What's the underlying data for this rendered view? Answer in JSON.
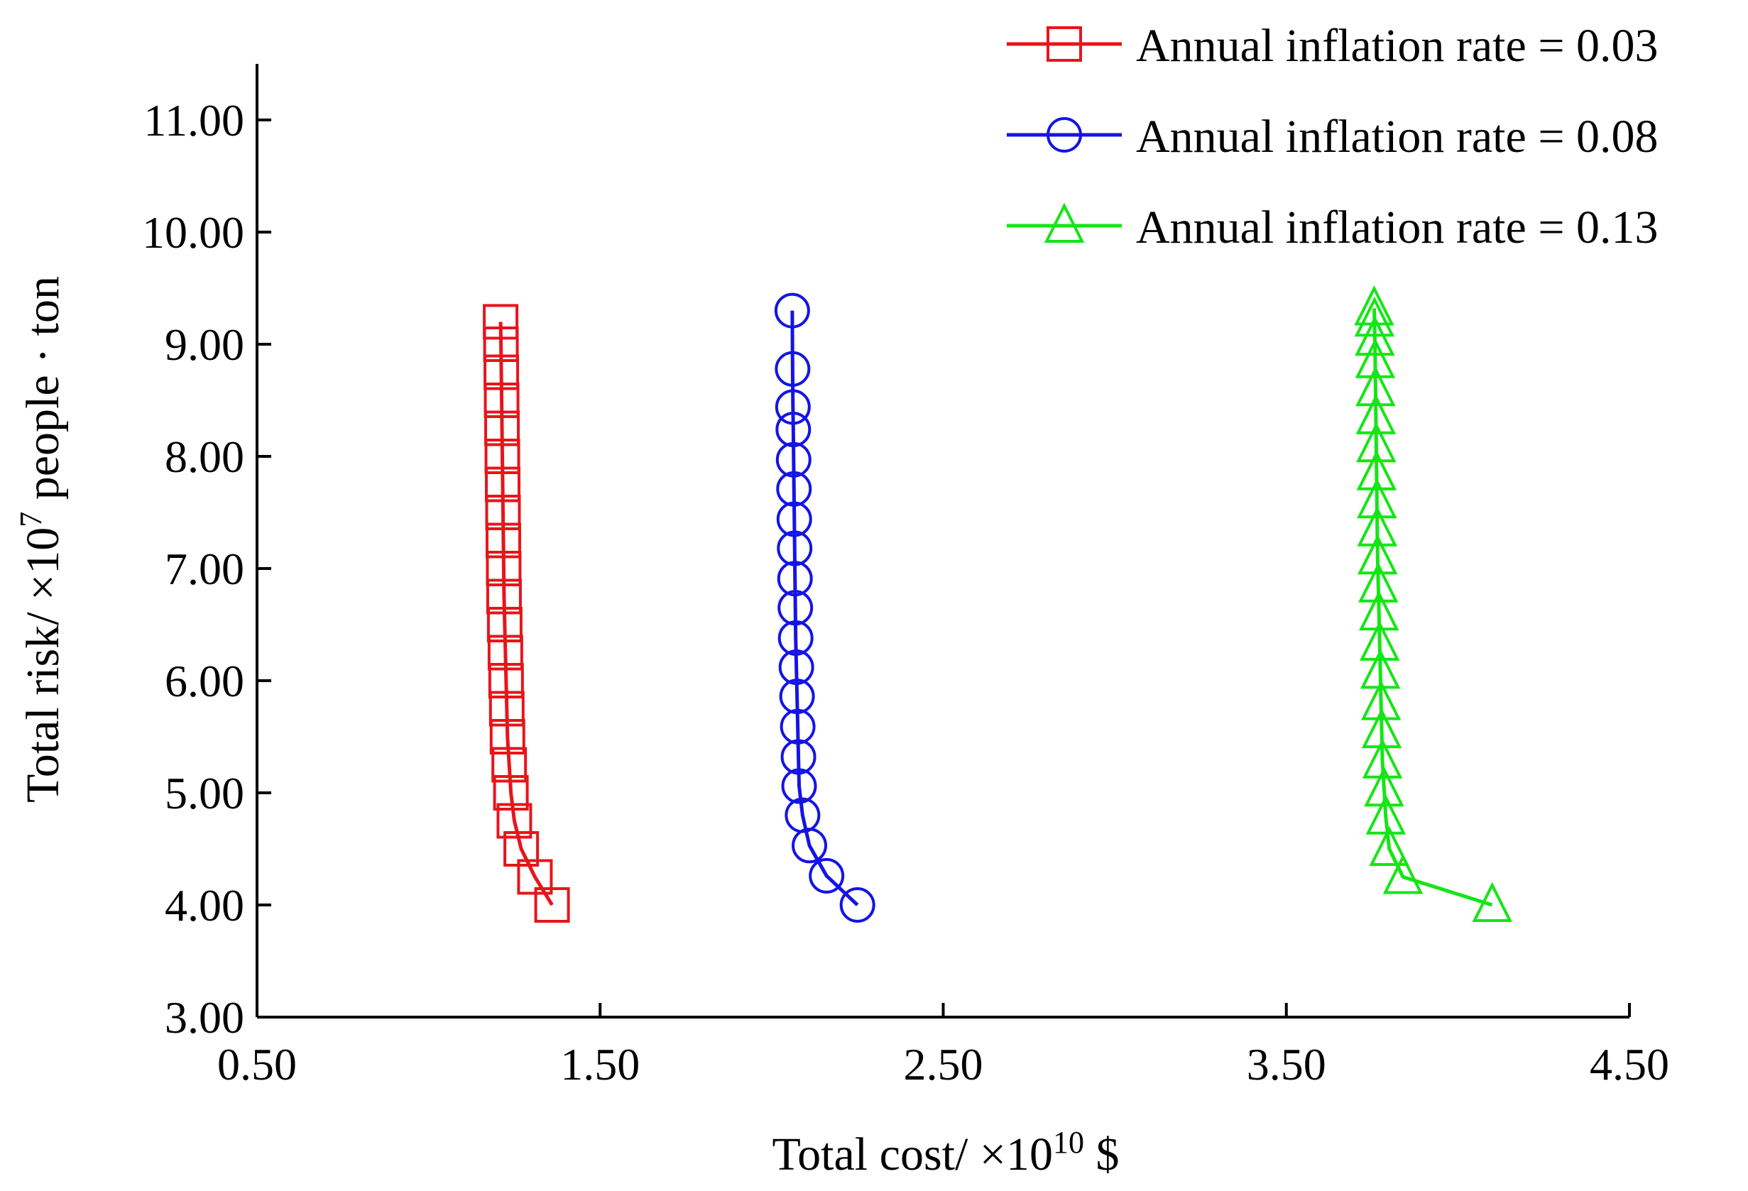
{
  "chart_data": {
    "type": "line",
    "title": "",
    "xlabel": "Total cost/ ×10",
    "xlabel_exponent": "10",
    "xlabel_unit": " $",
    "ylabel": "Total risk/ ×10",
    "ylabel_exponent": "7",
    "ylabel_unit": " people · ton",
    "xlim": [
      0.5,
      4.5
    ],
    "ylim": [
      3.0,
      11.5
    ],
    "xticks": [
      0.5,
      1.5,
      2.5,
      3.5,
      4.5
    ],
    "xtick_labels": [
      "0.50",
      "1.50",
      "2.50",
      "3.50",
      "4.50"
    ],
    "yticks": [
      3,
      4,
      5,
      6,
      7,
      8,
      9,
      10,
      11
    ],
    "ytick_labels": [
      "3.00",
      "4.00",
      "5.00",
      "6.00",
      "7.00",
      "8.00",
      "9.00",
      "10.00",
      "11.00"
    ],
    "grid": false,
    "legend_position": "top-right",
    "series": [
      {
        "name": "Annual inflation rate = 0.03",
        "color": "#e8141c",
        "marker": "square",
        "x": [
          1.36,
          1.31,
          1.27,
          1.25,
          1.24,
          1.235,
          1.23,
          1.228,
          1.226,
          1.224,
          1.222,
          1.22,
          1.219,
          1.218,
          1.217,
          1.216,
          1.215,
          1.214,
          1.213,
          1.212,
          1.211,
          1.21
        ],
        "y": [
          4.0,
          4.25,
          4.5,
          4.75,
          5.0,
          5.25,
          5.5,
          5.75,
          6.0,
          6.25,
          6.5,
          6.75,
          7.0,
          7.25,
          7.5,
          7.75,
          8.0,
          8.25,
          8.5,
          8.75,
          9.0,
          9.2
        ]
      },
      {
        "name": "Annual inflation rate = 0.08",
        "color": "#1414e6",
        "marker": "circle",
        "x": [
          2.25,
          2.16,
          2.11,
          2.09,
          2.08,
          2.078,
          2.076,
          2.074,
          2.072,
          2.07,
          2.069,
          2.068,
          2.067,
          2.066,
          2.065,
          2.064,
          2.063,
          2.062,
          2.061,
          2.06
        ],
        "y": [
          4.0,
          4.26,
          4.53,
          4.8,
          5.06,
          5.32,
          5.59,
          5.86,
          6.12,
          6.38,
          6.65,
          6.91,
          7.18,
          7.44,
          7.71,
          7.97,
          8.24,
          8.44,
          8.78,
          9.3
        ]
      },
      {
        "name": "Annual inflation rate = 0.13",
        "color": "#14e614",
        "marker": "triangle",
        "x": [
          4.1,
          3.84,
          3.8,
          3.79,
          3.785,
          3.78,
          3.778,
          3.776,
          3.774,
          3.772,
          3.77,
          3.768,
          3.766,
          3.765,
          3.764,
          3.763,
          3.762,
          3.761,
          3.76,
          3.759,
          3.758,
          3.757,
          3.756
        ],
        "y": [
          4.0,
          4.25,
          4.5,
          4.78,
          5.03,
          5.28,
          5.55,
          5.8,
          6.08,
          6.33,
          6.6,
          6.85,
          7.1,
          7.35,
          7.6,
          7.85,
          8.1,
          8.35,
          8.6,
          8.85,
          9.05,
          9.22,
          9.32
        ]
      }
    ]
  }
}
